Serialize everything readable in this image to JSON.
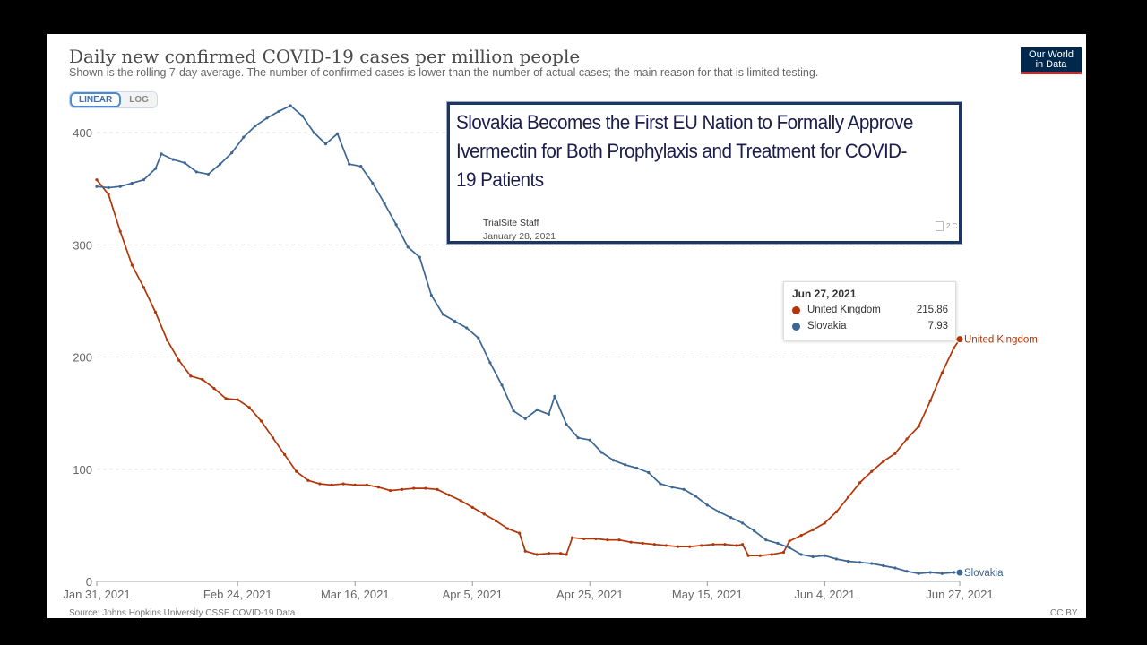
{
  "header": {
    "title": "Daily new confirmed COVID-19 cases per million people",
    "subtitle": "Shown is the rolling 7-day average. The number of confirmed cases is lower than the number of actual cases; the main reason for that is limited testing.",
    "logo_line1": "Our World",
    "logo_line2": "in Data"
  },
  "toggle": {
    "linear": "LINEAR",
    "log": "LOG"
  },
  "overlay": {
    "headline": "Slovakia Becomes the First EU Nation to Formally Approve Ivermectin for Both Prophylaxis and Treatment for COVID-19 Patients",
    "author": "TrialSite Staff",
    "date": "January 28, 2021",
    "comments": "2 C"
  },
  "tooltip": {
    "date": "Jun 27, 2021",
    "rows": [
      {
        "name": "United Kingdom",
        "value": "215.86"
      },
      {
        "name": "Slovakia",
        "value": "7.93"
      }
    ]
  },
  "footer": {
    "source": "Source: Johns Hopkins University CSSE COVID-19 Data",
    "license": "CC BY"
  },
  "colors": {
    "uk": "#b13507",
    "slovakia": "#3c6693",
    "grid": "#dddddd"
  },
  "chart_data": {
    "type": "line",
    "title": "Daily new confirmed COVID-19 cases per million people",
    "subtitle": "Shown is the rolling 7-day average. The number of confirmed cases is lower than the number of actual cases; the main reason for that is limited testing.",
    "ylim": [
      0,
      440
    ],
    "yticks": [
      0,
      100,
      200,
      300,
      400
    ],
    "x_tick_labels": [
      "Jan 31, 2021",
      "Feb 24, 2021",
      "Mar 16, 2021",
      "Apr 5, 2021",
      "Apr 25, 2021",
      "May 15, 2021",
      "Jun 4, 2021",
      "Jun 27, 2021"
    ],
    "x_tick_dates": [
      "2021-01-31",
      "2021-02-24",
      "2021-03-16",
      "2021-04-05",
      "2021-04-25",
      "2021-05-15",
      "2021-06-04",
      "2021-06-27"
    ],
    "grid": true,
    "series": [
      {
        "name": "United Kingdom",
        "color": "#b13507",
        "points": [
          [
            "2021-01-31",
            358
          ],
          [
            "2021-02-02",
            345
          ],
          [
            "2021-02-04",
            312
          ],
          [
            "2021-02-06",
            282
          ],
          [
            "2021-02-08",
            262
          ],
          [
            "2021-02-10",
            240
          ],
          [
            "2021-02-12",
            215
          ],
          [
            "2021-02-14",
            197
          ],
          [
            "2021-02-16",
            183
          ],
          [
            "2021-02-18",
            180
          ],
          [
            "2021-02-20",
            172
          ],
          [
            "2021-02-22",
            163
          ],
          [
            "2021-02-24",
            162
          ],
          [
            "2021-02-26",
            155
          ],
          [
            "2021-02-28",
            143
          ],
          [
            "2021-03-02",
            128
          ],
          [
            "2021-03-04",
            113
          ],
          [
            "2021-03-06",
            98
          ],
          [
            "2021-03-08",
            90
          ],
          [
            "2021-03-10",
            87
          ],
          [
            "2021-03-12",
            86
          ],
          [
            "2021-03-14",
            87
          ],
          [
            "2021-03-16",
            86
          ],
          [
            "2021-03-18",
            86
          ],
          [
            "2021-03-20",
            84
          ],
          [
            "2021-03-22",
            81
          ],
          [
            "2021-03-24",
            82
          ],
          [
            "2021-03-26",
            83
          ],
          [
            "2021-03-28",
            83
          ],
          [
            "2021-03-30",
            82
          ],
          [
            "2021-04-01",
            77
          ],
          [
            "2021-04-03",
            72
          ],
          [
            "2021-04-05",
            66
          ],
          [
            "2021-04-07",
            60
          ],
          [
            "2021-04-09",
            54
          ],
          [
            "2021-04-11",
            47
          ],
          [
            "2021-04-13",
            43
          ],
          [
            "2021-04-14",
            27
          ],
          [
            "2021-04-16",
            24
          ],
          [
            "2021-04-18",
            25
          ],
          [
            "2021-04-20",
            25
          ],
          [
            "2021-04-21",
            24
          ],
          [
            "2021-04-22",
            39
          ],
          [
            "2021-04-24",
            38
          ],
          [
            "2021-04-26",
            38
          ],
          [
            "2021-04-28",
            37
          ],
          [
            "2021-04-30",
            37
          ],
          [
            "2021-05-02",
            35
          ],
          [
            "2021-05-04",
            34
          ],
          [
            "2021-05-06",
            33
          ],
          [
            "2021-05-08",
            32
          ],
          [
            "2021-05-10",
            31
          ],
          [
            "2021-05-12",
            31
          ],
          [
            "2021-05-14",
            32
          ],
          [
            "2021-05-16",
            33
          ],
          [
            "2021-05-18",
            33
          ],
          [
            "2021-05-20",
            32
          ],
          [
            "2021-05-21",
            33
          ],
          [
            "2021-05-22",
            23
          ],
          [
            "2021-05-24",
            23
          ],
          [
            "2021-05-26",
            24
          ],
          [
            "2021-05-28",
            26
          ],
          [
            "2021-05-29",
            36
          ],
          [
            "2021-05-31",
            41
          ],
          [
            "2021-06-02",
            46
          ],
          [
            "2021-06-04",
            52
          ],
          [
            "2021-06-06",
            62
          ],
          [
            "2021-06-08",
            75
          ],
          [
            "2021-06-10",
            88
          ],
          [
            "2021-06-12",
            98
          ],
          [
            "2021-06-14",
            107
          ],
          [
            "2021-06-16",
            114
          ],
          [
            "2021-06-18",
            127
          ],
          [
            "2021-06-20",
            138
          ],
          [
            "2021-06-22",
            161
          ],
          [
            "2021-06-24",
            186
          ],
          [
            "2021-06-26",
            208
          ],
          [
            "2021-06-27",
            215.86
          ]
        ],
        "end_label": "United Kingdom"
      },
      {
        "name": "Slovakia",
        "color": "#3c6693",
        "points": [
          [
            "2021-01-31",
            352
          ],
          [
            "2021-02-02",
            351
          ],
          [
            "2021-02-04",
            352
          ],
          [
            "2021-02-06",
            355
          ],
          [
            "2021-02-08",
            358
          ],
          [
            "2021-02-10",
            368
          ],
          [
            "2021-02-11",
            381
          ],
          [
            "2021-02-13",
            376
          ],
          [
            "2021-02-15",
            373
          ],
          [
            "2021-02-17",
            365
          ],
          [
            "2021-02-19",
            363
          ],
          [
            "2021-02-21",
            372
          ],
          [
            "2021-02-23",
            382
          ],
          [
            "2021-02-25",
            396
          ],
          [
            "2021-02-27",
            406
          ],
          [
            "2021-03-01",
            413
          ],
          [
            "2021-03-03",
            419
          ],
          [
            "2021-03-05",
            424
          ],
          [
            "2021-03-07",
            415
          ],
          [
            "2021-03-09",
            400
          ],
          [
            "2021-03-11",
            390
          ],
          [
            "2021-03-13",
            399
          ],
          [
            "2021-03-15",
            372
          ],
          [
            "2021-03-17",
            370
          ],
          [
            "2021-03-19",
            355
          ],
          [
            "2021-03-21",
            337
          ],
          [
            "2021-03-23",
            318
          ],
          [
            "2021-03-25",
            298
          ],
          [
            "2021-03-27",
            289
          ],
          [
            "2021-03-29",
            255
          ],
          [
            "2021-03-31",
            238
          ],
          [
            "2021-04-02",
            232
          ],
          [
            "2021-04-04",
            226
          ],
          [
            "2021-04-06",
            217
          ],
          [
            "2021-04-08",
            195
          ],
          [
            "2021-04-10",
            175
          ],
          [
            "2021-04-12",
            152
          ],
          [
            "2021-04-14",
            145
          ],
          [
            "2021-04-16",
            153
          ],
          [
            "2021-04-18",
            149
          ],
          [
            "2021-04-19",
            165
          ],
          [
            "2021-04-21",
            140
          ],
          [
            "2021-04-23",
            128
          ],
          [
            "2021-04-25",
            126
          ],
          [
            "2021-04-27",
            115
          ],
          [
            "2021-04-29",
            108
          ],
          [
            "2021-05-01",
            104
          ],
          [
            "2021-05-03",
            101
          ],
          [
            "2021-05-05",
            97
          ],
          [
            "2021-05-07",
            87
          ],
          [
            "2021-05-09",
            84
          ],
          [
            "2021-05-11",
            82
          ],
          [
            "2021-05-13",
            76
          ],
          [
            "2021-05-15",
            68
          ],
          [
            "2021-05-17",
            62
          ],
          [
            "2021-05-19",
            57
          ],
          [
            "2021-05-21",
            52
          ],
          [
            "2021-05-23",
            45
          ],
          [
            "2021-05-25",
            37
          ],
          [
            "2021-05-27",
            34
          ],
          [
            "2021-05-29",
            30
          ],
          [
            "2021-05-31",
            24
          ],
          [
            "2021-06-02",
            22
          ],
          [
            "2021-06-04",
            23
          ],
          [
            "2021-06-06",
            20
          ],
          [
            "2021-06-08",
            18
          ],
          [
            "2021-06-10",
            17
          ],
          [
            "2021-06-12",
            16
          ],
          [
            "2021-06-14",
            14
          ],
          [
            "2021-06-16",
            12
          ],
          [
            "2021-06-18",
            9
          ],
          [
            "2021-06-20",
            7
          ],
          [
            "2021-06-22",
            8
          ],
          [
            "2021-06-24",
            7
          ],
          [
            "2021-06-26",
            8
          ],
          [
            "2021-06-27",
            7.93
          ]
        ],
        "end_label": "Slovakia"
      }
    ]
  }
}
